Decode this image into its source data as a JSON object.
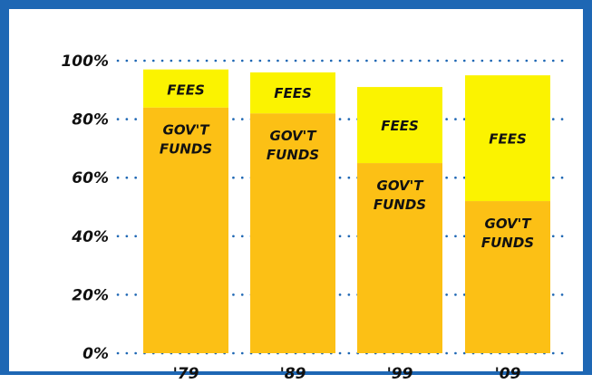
{
  "chart_data": {
    "type": "bar",
    "stacked": true,
    "categories": [
      "'79",
      "'89",
      "'99",
      "'09"
    ],
    "series": [
      {
        "name": "GOV'T FUNDS",
        "values": [
          84,
          82,
          65,
          52
        ],
        "color": "#fcc015"
      },
      {
        "name": "FEES",
        "values": [
          13,
          14,
          26,
          43
        ],
        "color": "#fbf300"
      }
    ],
    "segment_labels": {
      "bottom": [
        "GOV'T",
        "FUNDS"
      ],
      "top": "FEES"
    },
    "yticks": [
      "0%",
      "20%",
      "40%",
      "60%",
      "80%",
      "100%"
    ],
    "ytick_values": [
      0,
      20,
      40,
      60,
      80,
      100
    ],
    "ylim": [
      0,
      100
    ],
    "grid": true,
    "gridline_color": "#1e67b4",
    "title": "",
    "xlabel": "",
    "ylabel": ""
  }
}
